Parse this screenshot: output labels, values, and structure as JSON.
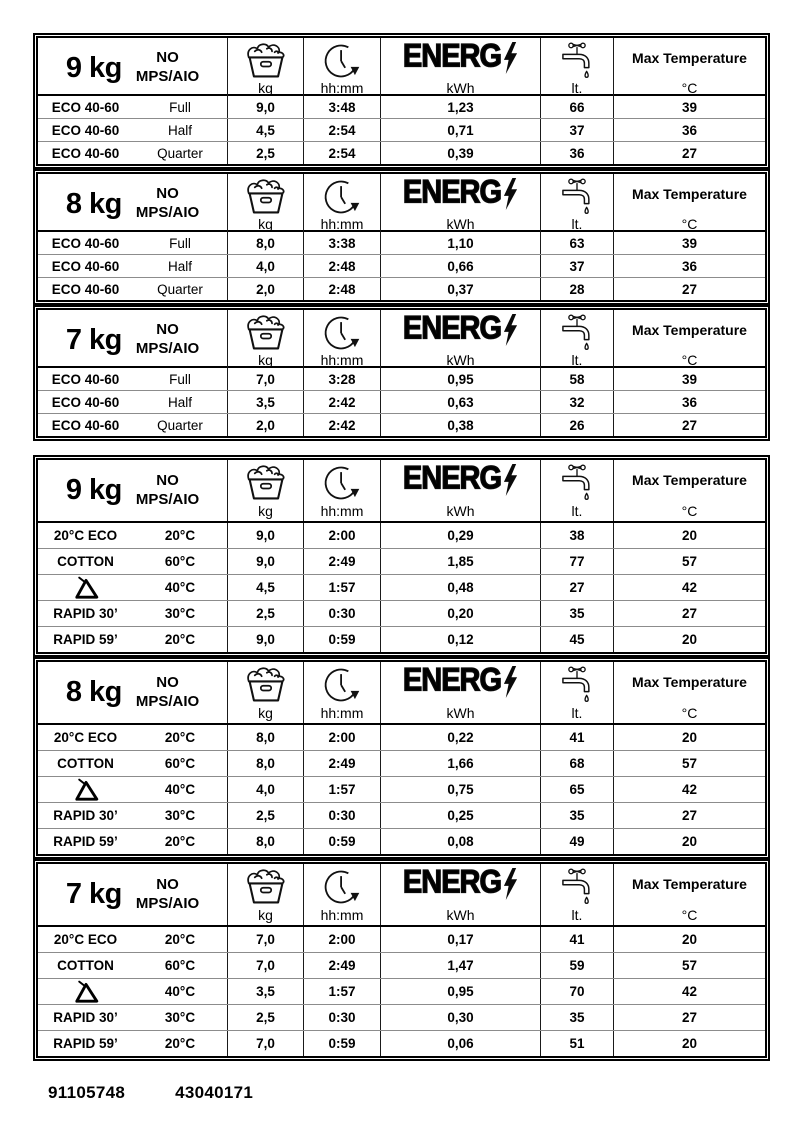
{
  "header": {
    "program_line1": "NO",
    "program_line2": "MPS/AIO",
    "load_unit": "kg",
    "time_unit": "hh:mm",
    "energy_word": "ENERG",
    "energy_unit": "kWh",
    "water_unit": "lt.",
    "temp_title": "Max Temperature",
    "temp_unit": "°C"
  },
  "tables": [
    {
      "name": "eco-40-60-table",
      "sections": [
        {
          "capacity": "9 kg",
          "rows": [
            {
              "program": "ECO 40-60",
              "load": "Full",
              "kg": "9,0",
              "time": "3:48",
              "kwh": "1,23",
              "lt": "66",
              "temp": "39"
            },
            {
              "program": "ECO 40-60",
              "load": "Half",
              "kg": "4,5",
              "time": "2:54",
              "kwh": "0,71",
              "lt": "37",
              "temp": "36"
            },
            {
              "program": "ECO 40-60",
              "load": "Quarter",
              "kg": "2,5",
              "time": "2:54",
              "kwh": "0,39",
              "lt": "36",
              "temp": "27"
            }
          ]
        },
        {
          "capacity": "8 kg",
          "rows": [
            {
              "program": "ECO 40-60",
              "load": "Full",
              "kg": "8,0",
              "time": "3:38",
              "kwh": "1,10",
              "lt": "63",
              "temp": "39"
            },
            {
              "program": "ECO 40-60",
              "load": "Half",
              "kg": "4,0",
              "time": "2:48",
              "kwh": "0,66",
              "lt": "37",
              "temp": "36"
            },
            {
              "program": "ECO 40-60",
              "load": "Quarter",
              "kg": "2,0",
              "time": "2:48",
              "kwh": "0,37",
              "lt": "28",
              "temp": "27"
            }
          ]
        },
        {
          "capacity": "7 kg",
          "rows": [
            {
              "program": "ECO 40-60",
              "load": "Full",
              "kg": "7,0",
              "time": "3:28",
              "kwh": "0,95",
              "lt": "58",
              "temp": "39"
            },
            {
              "program": "ECO 40-60",
              "load": "Half",
              "kg": "3,5",
              "time": "2:42",
              "kwh": "0,63",
              "lt": "32",
              "temp": "36"
            },
            {
              "program": "ECO 40-60",
              "load": "Quarter",
              "kg": "2,0",
              "time": "2:42",
              "kwh": "0,38",
              "lt": "26",
              "temp": "27"
            }
          ]
        }
      ]
    },
    {
      "name": "programs-table",
      "sections": [
        {
          "capacity": "9 kg",
          "rows": [
            {
              "program": "20°C ECO",
              "load": "20°C",
              "kg": "9,0",
              "time": "2:00",
              "kwh": "0,29",
              "lt": "38",
              "temp": "20"
            },
            {
              "program": "COTTON",
              "load": "60°C",
              "kg": "9,0",
              "time": "2:49",
              "kwh": "1,85",
              "lt": "77",
              "temp": "57"
            },
            {
              "program": "",
              "program_icon": "wash-triangle",
              "load": "40°C",
              "kg": "4,5",
              "time": "1:57",
              "kwh": "0,48",
              "lt": "27",
              "temp": "42"
            },
            {
              "program": "RAPID 30’",
              "load": "30°C",
              "kg": "2,5",
              "time": "0:30",
              "kwh": "0,20",
              "lt": "35",
              "temp": "27"
            },
            {
              "program": "RAPID 59’",
              "load": "20°C",
              "kg": "9,0",
              "time": "0:59",
              "kwh": "0,12",
              "lt": "45",
              "temp": "20"
            }
          ]
        },
        {
          "capacity": "8 kg",
          "rows": [
            {
              "program": "20°C ECO",
              "load": "20°C",
              "kg": "8,0",
              "time": "2:00",
              "kwh": "0,22",
              "lt": "41",
              "temp": "20"
            },
            {
              "program": "COTTON",
              "load": "60°C",
              "kg": "8,0",
              "time": "2:49",
              "kwh": "1,66",
              "lt": "68",
              "temp": "57"
            },
            {
              "program": "",
              "program_icon": "wash-triangle",
              "load": "40°C",
              "kg": "4,0",
              "time": "1:57",
              "kwh": "0,75",
              "lt": "65",
              "temp": "42"
            },
            {
              "program": "RAPID 30’",
              "load": "30°C",
              "kg": "2,5",
              "time": "0:30",
              "kwh": "0,25",
              "lt": "35",
              "temp": "27"
            },
            {
              "program": "RAPID 59’",
              "load": "20°C",
              "kg": "8,0",
              "time": "0:59",
              "kwh": "0,08",
              "lt": "49",
              "temp": "20"
            }
          ]
        },
        {
          "capacity": "7 kg",
          "rows": [
            {
              "program": "20°C ECO",
              "load": "20°C",
              "kg": "7,0",
              "time": "2:00",
              "kwh": "0,17",
              "lt": "41",
              "temp": "20"
            },
            {
              "program": "COTTON",
              "load": "60°C",
              "kg": "7,0",
              "time": "2:49",
              "kwh": "1,47",
              "lt": "59",
              "temp": "57"
            },
            {
              "program": "",
              "program_icon": "wash-triangle",
              "load": "40°C",
              "kg": "3,5",
              "time": "1:57",
              "kwh": "0,95",
              "lt": "70",
              "temp": "42"
            },
            {
              "program": "RAPID 30’",
              "load": "30°C",
              "kg": "2,5",
              "time": "0:30",
              "kwh": "0,30",
              "lt": "35",
              "temp": "27"
            },
            {
              "program": "RAPID 59’",
              "load": "20°C",
              "kg": "7,0",
              "time": "0:59",
              "kwh": "0,06",
              "lt": "51",
              "temp": "20"
            }
          ]
        }
      ]
    }
  ],
  "footer": {
    "code_left": "91105748",
    "code_right": "43040171"
  }
}
